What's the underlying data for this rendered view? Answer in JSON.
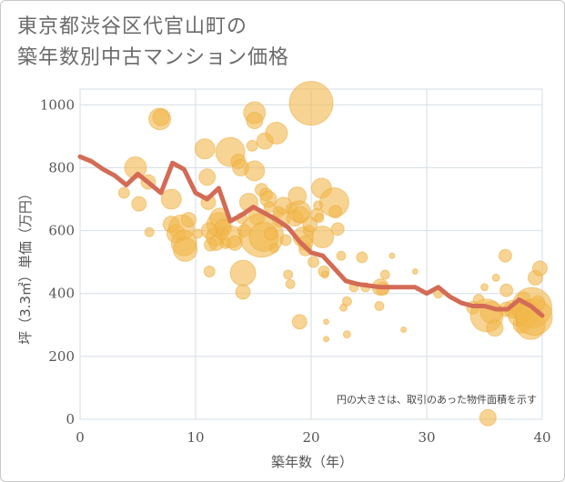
{
  "title": {
    "line1": "東京都渋谷区代官山町の",
    "line2": "築年数別中古マンション価格"
  },
  "chart_data": {
    "type": "scatter",
    "xlabel": "築年数（年）",
    "ylabel": "坪（3.3㎡）単価（万円）",
    "xlim": [
      0,
      40
    ],
    "ylim": [
      0,
      1050
    ],
    "xticks": [
      0,
      10,
      20,
      30,
      40
    ],
    "yticks": [
      0,
      200,
      400,
      600,
      800,
      1000
    ],
    "xtick_labels": [
      "0",
      "10",
      "20",
      "30",
      "40"
    ],
    "ytick_labels": [
      "0",
      "200",
      "400",
      "600",
      "800",
      "1000"
    ],
    "grid": true,
    "note": "円の大きさは、取引のあった物件面積を示す",
    "bubble_color": "#f2b84b",
    "line_color": "#d36b55",
    "line": {
      "x": [
        0,
        1,
        2,
        3,
        4,
        5,
        6,
        7,
        8,
        9,
        10,
        11,
        12,
        13,
        14,
        15,
        16,
        17,
        18,
        19,
        20,
        21,
        22,
        23,
        24,
        25,
        26,
        27,
        28,
        29,
        30,
        31,
        32,
        33,
        34,
        35,
        36,
        37,
        38,
        39,
        40
      ],
      "y": [
        835,
        820,
        795,
        775,
        745,
        780,
        750,
        720,
        815,
        795,
        720,
        700,
        735,
        630,
        650,
        675,
        655,
        635,
        610,
        565,
        530,
        520,
        480,
        440,
        430,
        425,
        420,
        420,
        420,
        420,
        400,
        420,
        390,
        370,
        360,
        360,
        350,
        350,
        380,
        360,
        330
      ]
    },
    "bubbles": [
      {
        "x": 3.8,
        "y": 720,
        "s": 6
      },
      {
        "x": 4.8,
        "y": 800,
        "s": 12
      },
      {
        "x": 5.1,
        "y": 685,
        "s": 8
      },
      {
        "x": 5.9,
        "y": 755,
        "s": 8
      },
      {
        "x": 6.0,
        "y": 595,
        "s": 5
      },
      {
        "x": 6.9,
        "y": 955,
        "s": 12
      },
      {
        "x": 7.0,
        "y": 960,
        "s": 9
      },
      {
        "x": 7.9,
        "y": 700,
        "s": 11
      },
      {
        "x": 7.9,
        "y": 620,
        "s": 9
      },
      {
        "x": 8.3,
        "y": 590,
        "s": 10
      },
      {
        "x": 8.8,
        "y": 610,
        "s": 14
      },
      {
        "x": 9.0,
        "y": 560,
        "s": 14
      },
      {
        "x": 9.1,
        "y": 540,
        "s": 13
      },
      {
        "x": 9.4,
        "y": 635,
        "s": 8
      },
      {
        "x": 10.2,
        "y": 590,
        "s": 5
      },
      {
        "x": 10.8,
        "y": 860,
        "s": 11
      },
      {
        "x": 11.0,
        "y": 770,
        "s": 9
      },
      {
        "x": 11.1,
        "y": 690,
        "s": 8
      },
      {
        "x": 11.2,
        "y": 600,
        "s": 9
      },
      {
        "x": 11.3,
        "y": 555,
        "s": 7
      },
      {
        "x": 11.2,
        "y": 470,
        "s": 6
      },
      {
        "x": 11.7,
        "y": 580,
        "s": 10
      },
      {
        "x": 11.8,
        "y": 560,
        "s": 8
      },
      {
        "x": 12.0,
        "y": 620,
        "s": 13
      },
      {
        "x": 12.1,
        "y": 640,
        "s": 11
      },
      {
        "x": 12.3,
        "y": 590,
        "s": 7
      },
      {
        "x": 12.4,
        "y": 610,
        "s": 9
      },
      {
        "x": 12.6,
        "y": 560,
        "s": 6
      },
      {
        "x": 13.0,
        "y": 850,
        "s": 16
      },
      {
        "x": 13.1,
        "y": 580,
        "s": 12
      },
      {
        "x": 13.4,
        "y": 560,
        "s": 8
      },
      {
        "x": 13.7,
        "y": 820,
        "s": 8
      },
      {
        "x": 13.9,
        "y": 800,
        "s": 9
      },
      {
        "x": 14.0,
        "y": 640,
        "s": 6
      },
      {
        "x": 14.2,
        "y": 600,
        "s": 7
      },
      {
        "x": 14.1,
        "y": 465,
        "s": 14
      },
      {
        "x": 14.1,
        "y": 405,
        "s": 8
      },
      {
        "x": 14.6,
        "y": 690,
        "s": 10
      },
      {
        "x": 14.9,
        "y": 870,
        "s": 6
      },
      {
        "x": 15.1,
        "y": 975,
        "s": 12
      },
      {
        "x": 15.1,
        "y": 950,
        "s": 9
      },
      {
        "x": 15.1,
        "y": 790,
        "s": 11
      },
      {
        "x": 15.3,
        "y": 645,
        "s": 9
      },
      {
        "x": 15.7,
        "y": 585,
        "s": 24
      },
      {
        "x": 15.9,
        "y": 580,
        "s": 16
      },
      {
        "x": 15.7,
        "y": 730,
        "s": 7
      },
      {
        "x": 16.0,
        "y": 885,
        "s": 9
      },
      {
        "x": 16.1,
        "y": 715,
        "s": 7
      },
      {
        "x": 16.3,
        "y": 700,
        "s": 9
      },
      {
        "x": 16.4,
        "y": 675,
        "s": 6
      },
      {
        "x": 16.5,
        "y": 590,
        "s": 7
      },
      {
        "x": 16.8,
        "y": 545,
        "s": 5
      },
      {
        "x": 17.0,
        "y": 910,
        "s": 12
      },
      {
        "x": 17.2,
        "y": 660,
        "s": 6
      },
      {
        "x": 17.4,
        "y": 640,
        "s": 10
      },
      {
        "x": 17.6,
        "y": 680,
        "s": 9
      },
      {
        "x": 17.8,
        "y": 570,
        "s": 6
      },
      {
        "x": 18.0,
        "y": 460,
        "s": 5
      },
      {
        "x": 18.2,
        "y": 430,
        "s": 5
      },
      {
        "x": 18.3,
        "y": 670,
        "s": 6
      },
      {
        "x": 18.6,
        "y": 640,
        "s": 9
      },
      {
        "x": 18.8,
        "y": 710,
        "s": 10
      },
      {
        "x": 19.0,
        "y": 660,
        "s": 12
      },
      {
        "x": 19.1,
        "y": 650,
        "s": 9
      },
      {
        "x": 19.3,
        "y": 580,
        "s": 11
      },
      {
        "x": 19.5,
        "y": 560,
        "s": 8
      },
      {
        "x": 19.5,
        "y": 540,
        "s": 7
      },
      {
        "x": 19.8,
        "y": 600,
        "s": 6
      },
      {
        "x": 19.9,
        "y": 620,
        "s": 8
      },
      {
        "x": 19.0,
        "y": 310,
        "s": 8
      },
      {
        "x": 20.0,
        "y": 1005,
        "s": 24
      },
      {
        "x": 20.2,
        "y": 500,
        "s": 6
      },
      {
        "x": 20.5,
        "y": 650,
        "s": 7
      },
      {
        "x": 20.6,
        "y": 680,
        "s": 5
      },
      {
        "x": 20.7,
        "y": 640,
        "s": 5
      },
      {
        "x": 20.9,
        "y": 735,
        "s": 11
      },
      {
        "x": 21.0,
        "y": 580,
        "s": 12
      },
      {
        "x": 21.1,
        "y": 470,
        "s": 6
      },
      {
        "x": 21.2,
        "y": 460,
        "s": 4
      },
      {
        "x": 21.3,
        "y": 310,
        "s": 3
      },
      {
        "x": 21.3,
        "y": 255,
        "s": 3
      },
      {
        "x": 22.0,
        "y": 690,
        "s": 16
      },
      {
        "x": 22.1,
        "y": 660,
        "s": 7
      },
      {
        "x": 22.3,
        "y": 605,
        "s": 7
      },
      {
        "x": 22.6,
        "y": 520,
        "s": 5
      },
      {
        "x": 22.8,
        "y": 355,
        "s": 4
      },
      {
        "x": 23.1,
        "y": 375,
        "s": 5
      },
      {
        "x": 23.1,
        "y": 270,
        "s": 4
      },
      {
        "x": 23.7,
        "y": 420,
        "s": 5
      },
      {
        "x": 24.4,
        "y": 515,
        "s": 6
      },
      {
        "x": 24.7,
        "y": 420,
        "s": 5
      },
      {
        "x": 25.9,
        "y": 360,
        "s": 5
      },
      {
        "x": 26.0,
        "y": 420,
        "s": 9
      },
      {
        "x": 26.2,
        "y": 415,
        "s": 7
      },
      {
        "x": 26.4,
        "y": 460,
        "s": 5
      },
      {
        "x": 27.0,
        "y": 520,
        "s": 3
      },
      {
        "x": 28.0,
        "y": 285,
        "s": 3
      },
      {
        "x": 29.0,
        "y": 470,
        "s": 3
      },
      {
        "x": 31.0,
        "y": 400,
        "s": 5
      },
      {
        "x": 34.0,
        "y": 355,
        "s": 7
      },
      {
        "x": 34.5,
        "y": 380,
        "s": 6
      },
      {
        "x": 35.0,
        "y": 420,
        "s": 4
      },
      {
        "x": 35.2,
        "y": 330,
        "s": 18
      },
      {
        "x": 35.6,
        "y": 340,
        "s": 12
      },
      {
        "x": 35.9,
        "y": 290,
        "s": 9
      },
      {
        "x": 36.0,
        "y": 450,
        "s": 4
      },
      {
        "x": 36.8,
        "y": 520,
        "s": 7
      },
      {
        "x": 36.9,
        "y": 350,
        "s": 8
      },
      {
        "x": 36.9,
        "y": 410,
        "s": 7
      },
      {
        "x": 37.5,
        "y": 350,
        "s": 10
      },
      {
        "x": 38.0,
        "y": 330,
        "s": 12
      },
      {
        "x": 38.2,
        "y": 300,
        "s": 9
      },
      {
        "x": 38.4,
        "y": 385,
        "s": 7
      },
      {
        "x": 38.7,
        "y": 340,
        "s": 14
      },
      {
        "x": 39.0,
        "y": 300,
        "s": 16
      },
      {
        "x": 39.1,
        "y": 355,
        "s": 22
      },
      {
        "x": 39.3,
        "y": 325,
        "s": 20
      },
      {
        "x": 39.4,
        "y": 450,
        "s": 8
      },
      {
        "x": 39.6,
        "y": 370,
        "s": 8
      },
      {
        "x": 39.8,
        "y": 480,
        "s": 8
      },
      {
        "x": 35.3,
        "y": 5,
        "s": 9
      }
    ]
  }
}
